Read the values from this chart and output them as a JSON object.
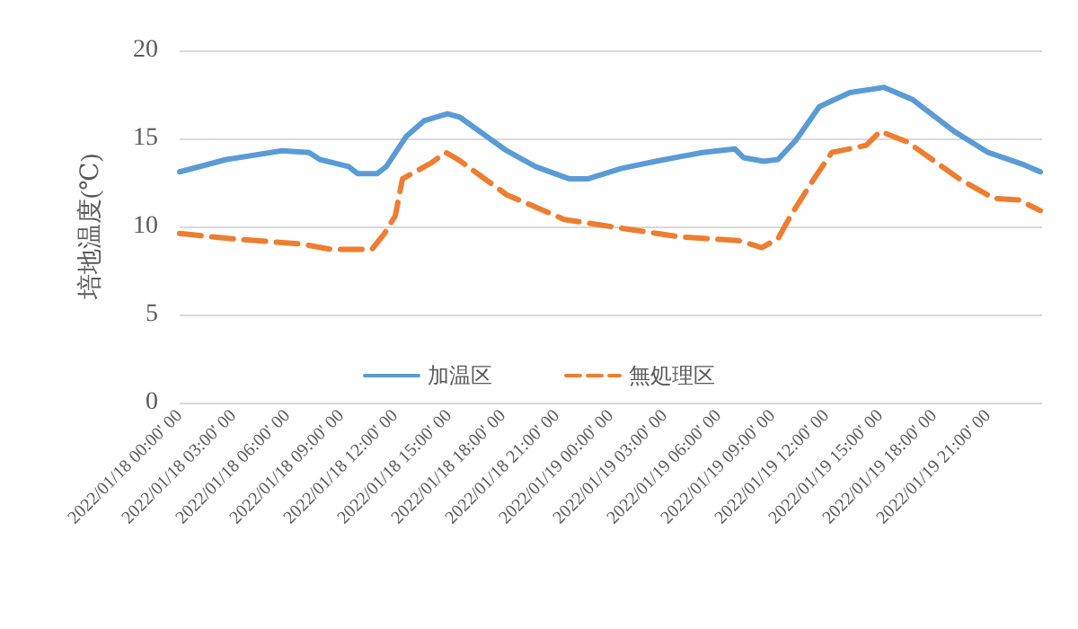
{
  "chart_data": {
    "type": "line",
    "ylabel": "培地温度(℃)",
    "xlim": [
      "2022-01-18T00:00",
      "2022-01-20T00:00"
    ],
    "xticks": [
      {
        "value": "2022-01-18T00:00",
        "label": "2022/01/18 00:00' 00"
      },
      {
        "value": "2022-01-18T03:00",
        "label": "2022/01/18 03:00' 00"
      },
      {
        "value": "2022-01-18T06:00",
        "label": "2022/01/18 06:00' 00"
      },
      {
        "value": "2022-01-18T09:00",
        "label": "2022/01/18 09:00' 00"
      },
      {
        "value": "2022-01-18T12:00",
        "label": "2022/01/18 12:00' 00"
      },
      {
        "value": "2022-01-18T15:00",
        "label": "2022/01/18 15:00' 00"
      },
      {
        "value": "2022-01-18T18:00",
        "label": "2022/01/18 18:00' 00"
      },
      {
        "value": "2022-01-18T21:00",
        "label": "2022/01/18 21:00' 00"
      },
      {
        "value": "2022-01-19T00:00",
        "label": "2022/01/19 00:00' 00"
      },
      {
        "value": "2022-01-19T03:00",
        "label": "2022/01/19 03:00' 00"
      },
      {
        "value": "2022-01-19T06:00",
        "label": "2022/01/19 06:00' 00"
      },
      {
        "value": "2022-01-19T09:00",
        "label": "2022/01/19 09:00' 00"
      },
      {
        "value": "2022-01-19T12:00",
        "label": "2022/01/19 12:00' 00"
      },
      {
        "value": "2022-01-19T15:00",
        "label": "2022/01/19 15:00' 00"
      },
      {
        "value": "2022-01-19T18:00",
        "label": "2022/01/19 18:00' 00"
      },
      {
        "value": "2022-01-19T21:00",
        "label": "2022/01/19 21:00' 00"
      }
    ],
    "ylim": [
      0,
      20
    ],
    "yticks": [
      0,
      5,
      10,
      15,
      20
    ],
    "grid": "y",
    "legend": "bottom",
    "marker": "none",
    "series": [
      {
        "name": "加温区",
        "color": "#5b9bd5",
        "line_style": "solid",
        "x": [
          "2022-01-18T00:00",
          "2022-01-18T02:36",
          "2022-01-18T05:42",
          "2022-01-18T07:12",
          "2022-01-18T07:48",
          "2022-01-18T09:24",
          "2022-01-18T09:54",
          "2022-01-18T11:00",
          "2022-01-18T11:30",
          "2022-01-18T12:36",
          "2022-01-18T13:36",
          "2022-01-18T14:54",
          "2022-01-18T15:36",
          "2022-01-18T18:12",
          "2022-01-18T19:48",
          "2022-01-18T21:42",
          "2022-01-18T22:42",
          "2022-01-19T00:36",
          "2022-01-19T02:30",
          "2022-01-19T05:06",
          "2022-01-19T06:54",
          "2022-01-19T07:24",
          "2022-01-19T08:30",
          "2022-01-19T09:18",
          "2022-01-19T10:18",
          "2022-01-19T11:36",
          "2022-01-19T13:18",
          "2022-01-19T14:36",
          "2022-01-19T15:12",
          "2022-01-19T16:48",
          "2022-01-19T19:06",
          "2022-01-19T21:00",
          "2022-01-19T23:00",
          "2022-01-19T23:54"
        ],
        "values": [
          13.1,
          13.8,
          14.3,
          14.2,
          13.8,
          13.4,
          13.0,
          13.0,
          13.4,
          15.1,
          16.0,
          16.4,
          16.2,
          14.3,
          13.4,
          12.7,
          12.7,
          13.3,
          13.7,
          14.2,
          14.4,
          13.9,
          13.7,
          13.8,
          14.9,
          16.8,
          17.6,
          17.8,
          17.9,
          17.2,
          15.4,
          14.2,
          13.5,
          13.1
        ]
      },
      {
        "name": "無処理区",
        "color": "#ed7d31",
        "line_style": "dashed",
        "x": [
          "2022-01-18T00:00",
          "2022-01-18T02:54",
          "2022-01-18T06:48",
          "2022-01-18T08:24",
          "2022-01-18T10:42",
          "2022-01-18T11:24",
          "2022-01-18T12:00",
          "2022-01-18T12:24",
          "2022-01-18T14:00",
          "2022-01-18T14:48",
          "2022-01-18T15:30",
          "2022-01-18T18:12",
          "2022-01-18T21:24",
          "2022-01-19T00:36",
          "2022-01-19T03:54",
          "2022-01-19T07:06",
          "2022-01-19T08:24",
          "2022-01-19T09:18",
          "2022-01-19T10:00",
          "2022-01-19T11:18",
          "2022-01-19T12:18",
          "2022-01-19T14:12",
          "2022-01-19T15:00",
          "2022-01-19T16:30",
          "2022-01-19T19:24",
          "2022-01-19T21:18",
          "2022-01-19T22:42",
          "2022-01-19T23:54"
        ],
        "values": [
          9.6,
          9.3,
          9.0,
          8.7,
          8.7,
          9.6,
          10.6,
          12.7,
          13.6,
          14.2,
          13.8,
          11.8,
          10.4,
          9.9,
          9.4,
          9.2,
          8.8,
          9.3,
          10.6,
          12.7,
          14.2,
          14.6,
          15.4,
          14.8,
          12.7,
          11.6,
          11.5,
          10.9
        ]
      }
    ]
  }
}
